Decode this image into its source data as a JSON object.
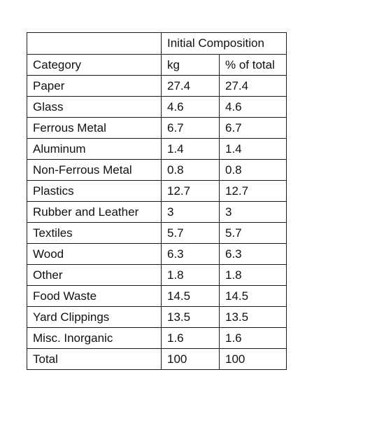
{
  "table": {
    "group_header": "Initial Composition",
    "headers": [
      "Category",
      "kg",
      "% of total"
    ],
    "rows": [
      {
        "category": "Paper",
        "kg": "27.4",
        "pct": "27.4"
      },
      {
        "category": "Glass",
        "kg": "4.6",
        "pct": "4.6"
      },
      {
        "category": "Ferrous Metal",
        "kg": "6.7",
        "pct": "6.7"
      },
      {
        "category": "Aluminum",
        "kg": "1.4",
        "pct": "1.4"
      },
      {
        "category": "Non-Ferrous Metal",
        "kg": "0.8",
        "pct": "0.8"
      },
      {
        "category": "Plastics",
        "kg": "12.7",
        "pct": "12.7"
      },
      {
        "category": "Rubber and Leather",
        "kg": "3",
        "pct": "3"
      },
      {
        "category": "Textiles",
        "kg": "5.7",
        "pct": "5.7"
      },
      {
        "category": "Wood",
        "kg": "6.3",
        "pct": "6.3"
      },
      {
        "category": "Other",
        "kg": "1.8",
        "pct": "1.8"
      },
      {
        "category": "Food Waste",
        "kg": "14.5",
        "pct": "14.5"
      },
      {
        "category": "Yard Clippings",
        "kg": "13.5",
        "pct": "13.5"
      },
      {
        "category": "Misc. Inorganic",
        "kg": "1.6",
        "pct": "1.6"
      },
      {
        "category": "Total",
        "kg": "100",
        "pct": "100"
      }
    ]
  }
}
